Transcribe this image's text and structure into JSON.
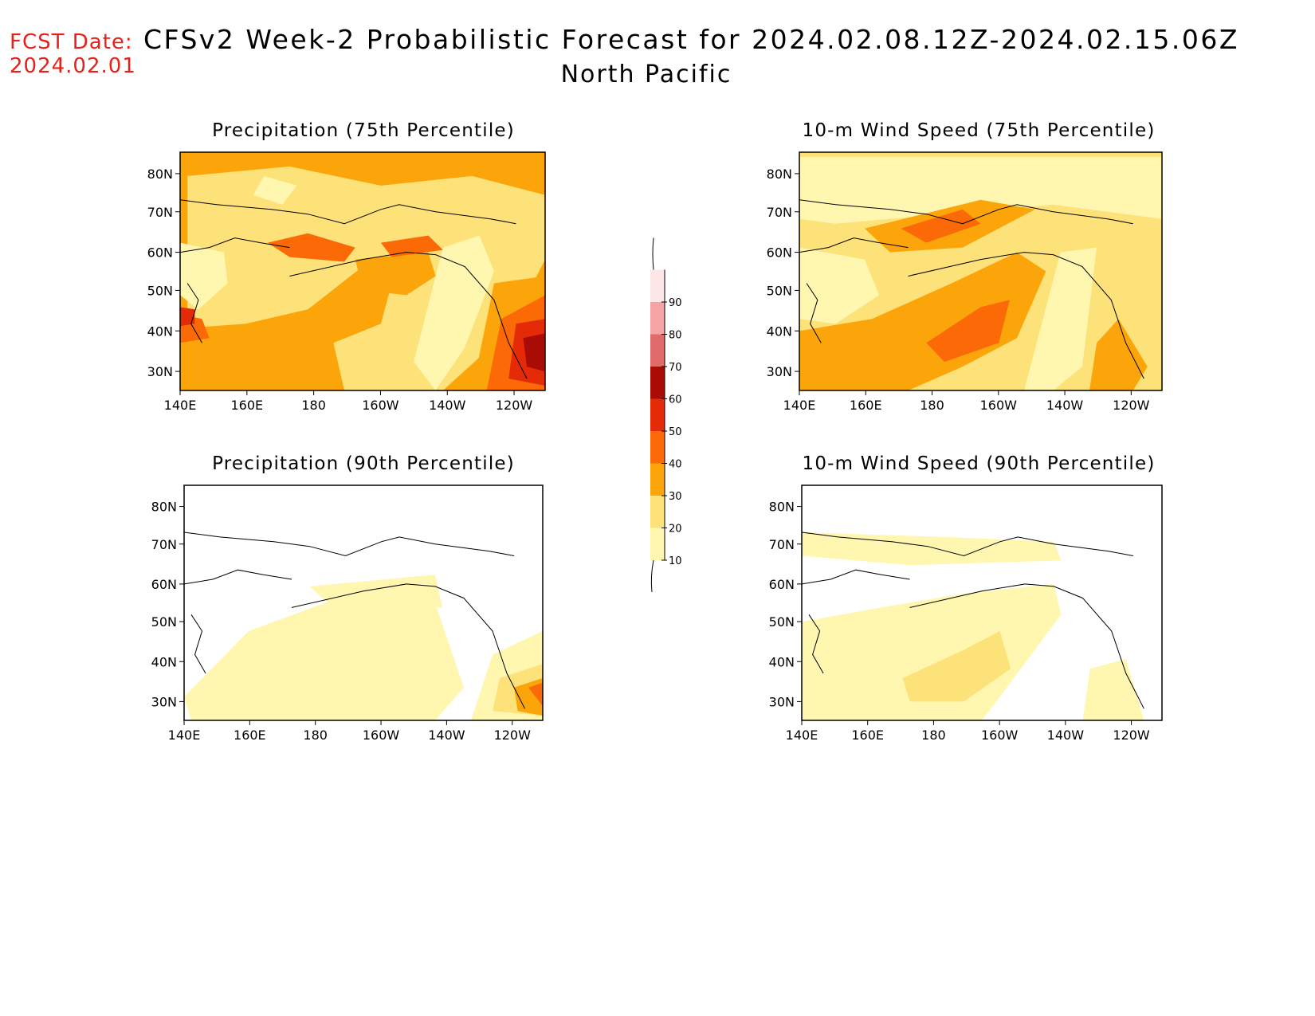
{
  "header": {
    "fcst_label": "FCST Date:",
    "fcst_date": "2024.02.01",
    "title": "CFSv2 Week-2 Probabilistic Forecast for 2024.02.08.12Z-2024.02.15.06Z",
    "region": "North Pacific"
  },
  "panels": [
    {
      "id": "precip75",
      "title": "Precipitation (75th Percentile)"
    },
    {
      "id": "wind75",
      "title": "10-m Wind Speed (75th Percentile)"
    },
    {
      "id": "precip90",
      "title": "Precipitation (90th Percentile)"
    },
    {
      "id": "wind90",
      "title": "10-m Wind Speed (90th Percentile)"
    }
  ],
  "axes": {
    "lat_labels": [
      "80N",
      "70N",
      "60N",
      "50N",
      "40N",
      "30N"
    ],
    "lon_labels": [
      "140E",
      "160E",
      "180",
      "160W",
      "140W",
      "120W"
    ]
  },
  "colorbar": {
    "levels": [
      "10",
      "20",
      "30",
      "40",
      "50",
      "60",
      "70",
      "80",
      "90"
    ],
    "colors": [
      "#fff7b0",
      "#fde27a",
      "#fca50a",
      "#fb6a06",
      "#e52a07",
      "#a80c05",
      "#e16a6a",
      "#f4a4a4",
      "#fde6e8"
    ]
  }
}
